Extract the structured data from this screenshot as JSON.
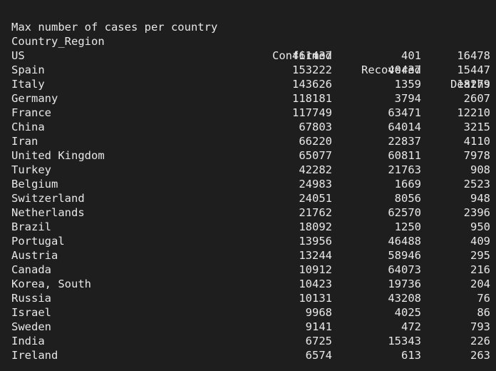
{
  "title": "Max number of cases per country",
  "columns": [
    "Country_Region",
    "Confirmed",
    "Recovered",
    "Deaths"
  ],
  "separators": [
    "--------------------------------",
    "-----------",
    "-----------",
    "--------"
  ],
  "rows": [
    [
      "US",
      "461437",
      "401",
      "16478"
    ],
    [
      "Spain",
      "153222",
      "40437",
      "15447"
    ],
    [
      "Italy",
      "143626",
      "1359",
      "18279"
    ],
    [
      "Germany",
      "118181",
      "3794",
      "2607"
    ],
    [
      "France",
      "117749",
      "63471",
      "12210"
    ],
    [
      "China",
      "67803",
      "64014",
      "3215"
    ],
    [
      "Iran",
      "66220",
      "22837",
      "4110"
    ],
    [
      "United Kingdom",
      "65077",
      "60811",
      "7978"
    ],
    [
      "Turkey",
      "42282",
      "21763",
      "908"
    ],
    [
      "Belgium",
      "24983",
      "1669",
      "2523"
    ],
    [
      "Switzerland",
      "24051",
      "8056",
      "948"
    ],
    [
      "Netherlands",
      "21762",
      "62570",
      "2396"
    ],
    [
      "Brazil",
      "18092",
      "1250",
      "950"
    ],
    [
      "Portugal",
      "13956",
      "46488",
      "409"
    ],
    [
      "Austria",
      "13244",
      "58946",
      "295"
    ],
    [
      "Canada",
      "10912",
      "64073",
      "216"
    ],
    [
      "Korea, South",
      "10423",
      "19736",
      "204"
    ],
    [
      "Russia",
      "10131",
      "43208",
      "76"
    ],
    [
      "Israel",
      "9968",
      "4025",
      "86"
    ],
    [
      "Sweden",
      "9141",
      "472",
      "793"
    ],
    [
      "India",
      "6725",
      "15343",
      "226"
    ],
    [
      "Ireland",
      "6574",
      "613",
      "263"
    ]
  ]
}
